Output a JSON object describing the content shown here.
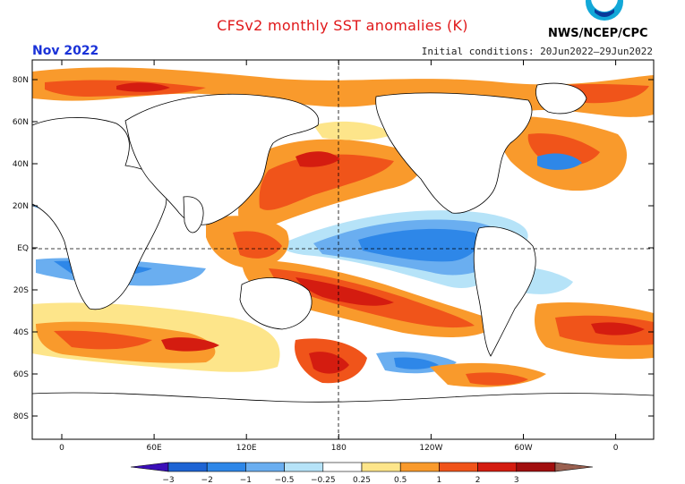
{
  "title": "CFSv2 monthly SST anomalies (K)",
  "month": "Nov 2022",
  "initial_conditions": "Initial conditions: 20Jun2022–29Jun2022",
  "agency": "NWS/NCEP/CPC",
  "logo_icon": "noaa-logo-icon",
  "lat_labels": [
    "80N",
    "60N",
    "40N",
    "20N",
    "EQ",
    "20S",
    "40S",
    "60S",
    "80S"
  ],
  "lon_labels": [
    "0",
    "60E",
    "120E",
    "180",
    "120W",
    "60W",
    "0"
  ],
  "colorbar": {
    "ticks": [
      "−3",
      "−2",
      "−1",
      "−0.5",
      "−0.25",
      "0.25",
      "0.5",
      "1",
      "2",
      "3"
    ],
    "colors": [
      "#3b0fb8",
      "#1e64d4",
      "#2e87e8",
      "#6aaef0",
      "#b6e3f8",
      "#ffffff",
      "#fde58a",
      "#f99a2c",
      "#f0541a",
      "#d41c10",
      "#a10e0e",
      "#9a6050"
    ]
  }
}
